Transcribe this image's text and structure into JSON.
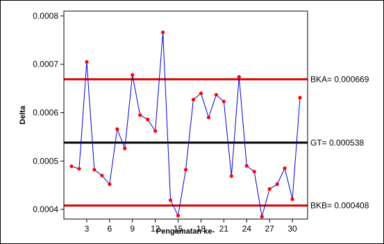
{
  "chart_data": {
    "type": "line",
    "xlabel": "Pengamatan ke-",
    "ylabel": "Delta",
    "xlim": [
      0,
      32
    ],
    "ylim": [
      0.00038,
      0.00081
    ],
    "x_ticks": [
      3,
      6,
      9,
      12,
      15,
      18,
      21,
      24,
      27,
      30
    ],
    "y_ticks": [
      0.0004,
      0.0005,
      0.0006,
      0.0007,
      0.0008
    ],
    "y_tick_labels": [
      "0.0004",
      "0.0005",
      "0.0006",
      "0.0007",
      "0.0008"
    ],
    "grid": false,
    "x": [
      1,
      2,
      3,
      4,
      5,
      6,
      7,
      8,
      9,
      10,
      11,
      12,
      13,
      14,
      15,
      16,
      17,
      18,
      19,
      20,
      21,
      22,
      23,
      24,
      25,
      26,
      27,
      28,
      29,
      30,
      31
    ],
    "series": [
      {
        "values": [
          0.000489,
          0.000484,
          0.000705,
          0.000482,
          0.00047,
          0.000452,
          0.000566,
          0.000526,
          0.000678,
          0.000595,
          0.000586,
          0.000562,
          0.000766,
          0.000419,
          0.000387,
          0.000482,
          0.000627,
          0.00064,
          0.00059,
          0.000637,
          0.000623,
          0.000469,
          0.000674,
          0.00049,
          0.000478,
          0.000385,
          0.000442,
          0.000452,
          0.000485,
          0.000421,
          0.000631
        ],
        "line_color": "#0000cc",
        "point_color": "#ff0000"
      }
    ],
    "reference_lines": [
      {
        "label": "BKA= 0.000669",
        "value": 0.000669,
        "color": "#e00000"
      },
      {
        "label": "GT= 0.000538",
        "value": 0.000538,
        "color": "#000000"
      },
      {
        "label": "BKB= 0.000408",
        "value": 0.000408,
        "color": "#e00000"
      }
    ]
  }
}
